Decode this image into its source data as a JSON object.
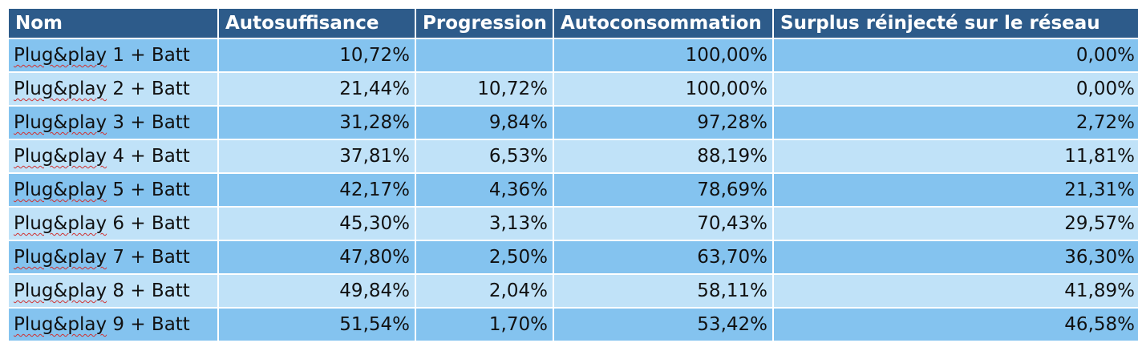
{
  "table": {
    "headers": [
      "Nom",
      "Autosuffisance",
      "Progression",
      "Autoconsommation",
      "Surplus réinjecté sur le réseau"
    ],
    "rows": [
      {
        "word": "Plug&play",
        "rest": " 1 + Batt",
        "autosuffisance": "10,72%",
        "progression": "",
        "autoconsommation": "100,00%",
        "surplus": "0,00%"
      },
      {
        "word": "Plug&play",
        "rest": " 2 + Batt",
        "autosuffisance": "21,44%",
        "progression": "10,72%",
        "autoconsommation": "100,00%",
        "surplus": "0,00%"
      },
      {
        "word": "Plug&play",
        "rest": " 3 + Batt",
        "autosuffisance": "31,28%",
        "progression": "9,84%",
        "autoconsommation": "97,28%",
        "surplus": "2,72%"
      },
      {
        "word": "Plug&play",
        "rest": " 4 + Batt",
        "autosuffisance": "37,81%",
        "progression": "6,53%",
        "autoconsommation": "88,19%",
        "surplus": "11,81%"
      },
      {
        "word": "Plug&play",
        "rest": " 5 + Batt",
        "autosuffisance": "42,17%",
        "progression": "4,36%",
        "autoconsommation": "78,69%",
        "surplus": "21,31%"
      },
      {
        "word": "Plug&play",
        "rest": " 6 + Batt",
        "autosuffisance": "45,30%",
        "progression": "3,13%",
        "autoconsommation": "70,43%",
        "surplus": "29,57%"
      },
      {
        "word": "Plug&play",
        "rest": " 7 + Batt",
        "autosuffisance": "47,80%",
        "progression": "2,50%",
        "autoconsommation": "63,70%",
        "surplus": "36,30%"
      },
      {
        "word": "Plug&play",
        "rest": " 8 + Batt",
        "autosuffisance": "49,84%",
        "progression": "2,04%",
        "autoconsommation": "58,11%",
        "surplus": "41,89%"
      },
      {
        "word": "Plug&play",
        "rest": " 9 + Batt",
        "autosuffisance": "51,54%",
        "progression": "1,70%",
        "autoconsommation": "53,42%",
        "surplus": "46,58%"
      }
    ]
  },
  "colors": {
    "header_bg": "#2d5b8a",
    "band_dark": "#84c3ef",
    "band_light": "#c0e2f8",
    "spellcheck": "#d03030"
  }
}
